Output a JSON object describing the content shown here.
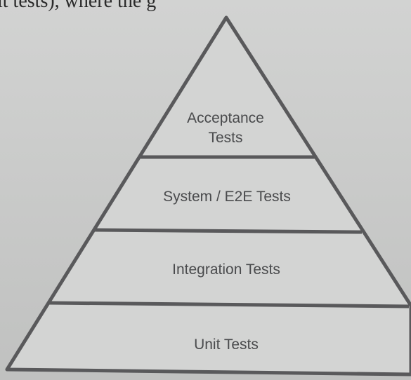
{
  "header_text_fragment": "it tests), where the g",
  "pyramid": {
    "tiers": [
      {
        "label_lines": [
          "Acceptance",
          "Tests"
        ]
      },
      {
        "label_lines": [
          "System / E2E Tests"
        ]
      },
      {
        "label_lines": [
          "Integration Tests"
        ]
      },
      {
        "label_lines": [
          "Unit Tests"
        ]
      }
    ]
  },
  "colors": {
    "outline": "#59595b",
    "label": "#4a4b4d",
    "fill": "#d3d4d3"
  }
}
